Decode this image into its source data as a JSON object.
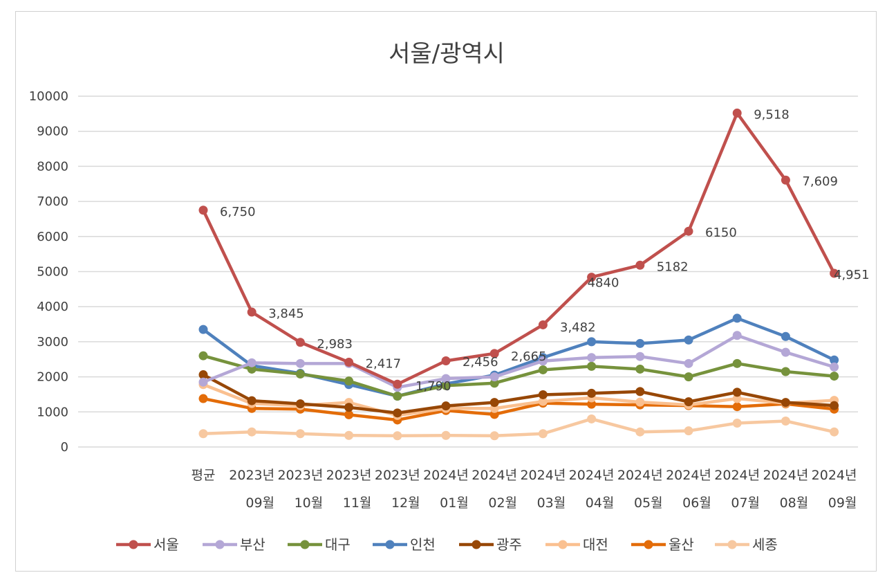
{
  "chart_data": {
    "type": "line",
    "title": "서울/광역시",
    "ylim": [
      0,
      10000
    ],
    "yticks": [
      0,
      1000,
      2000,
      3000,
      4000,
      5000,
      6000,
      7000,
      8000,
      9000,
      10000
    ],
    "grid": true,
    "legend_position": "bottom",
    "categories": [
      {
        "line1": "평균",
        "line2": ""
      },
      {
        "line1": "2023년",
        "line2": "09월"
      },
      {
        "line1": "2023년",
        "line2": "10월"
      },
      {
        "line1": "2023년",
        "line2": "11월"
      },
      {
        "line1": "2023년",
        "line2": "12월"
      },
      {
        "line1": "2024년",
        "line2": "01월"
      },
      {
        "line1": "2024년",
        "line2": "02월"
      },
      {
        "line1": "2024년",
        "line2": "03월"
      },
      {
        "line1": "2024년",
        "line2": "04월"
      },
      {
        "line1": "2024년",
        "line2": "05월"
      },
      {
        "line1": "2024년",
        "line2": "06월"
      },
      {
        "line1": "2024년",
        "line2": "07월"
      },
      {
        "line1": "2024년",
        "line2": "08월"
      },
      {
        "line1": "2024년",
        "line2": "09월"
      }
    ],
    "series": [
      {
        "name": "서울",
        "color": "#c0504d",
        "values": [
          6750,
          3845,
          2983,
          2417,
          1790,
          2456,
          2665,
          3482,
          4840,
          5182,
          6150,
          9518,
          7609,
          4951
        ],
        "labels": [
          "6,750",
          "3,845",
          "2,983",
          "2,417",
          "1,790",
          "2,456",
          "2,665",
          "3,482",
          "4840",
          "5182",
          "6150",
          "9,518",
          "7,609",
          "4,951"
        ]
      },
      {
        "name": "부산",
        "color": "#b4a7d6",
        "values": [
          1850,
          2400,
          2380,
          2380,
          1700,
          1950,
          2000,
          2450,
          2550,
          2580,
          2380,
          3180,
          2700,
          2280
        ]
      },
      {
        "name": "대구",
        "color": "#76923c",
        "values": [
          2600,
          2220,
          2080,
          1880,
          1450,
          1750,
          1820,
          2200,
          2300,
          2220,
          2000,
          2380,
          2150,
          2020
        ]
      },
      {
        "name": "인천",
        "color": "#4f81bd",
        "values": [
          3350,
          2320,
          2100,
          1780,
          1450,
          1800,
          2050,
          2550,
          3000,
          2950,
          3050,
          3670,
          3150,
          2480
        ]
      },
      {
        "name": "광주",
        "color": "#974706",
        "values": [
          2060,
          1320,
          1230,
          1130,
          970,
          1170,
          1270,
          1490,
          1530,
          1580,
          1290,
          1560,
          1270,
          1180
        ]
      },
      {
        "name": "대전",
        "color": "#fac090",
        "values": [
          1780,
          1240,
          1180,
          1270,
          900,
          1100,
          1100,
          1300,
          1400,
          1280,
          1200,
          1380,
          1250,
          1330
        ]
      },
      {
        "name": "울산",
        "color": "#e36c09",
        "values": [
          1380,
          1100,
          1080,
          920,
          770,
          1040,
          930,
          1250,
          1220,
          1200,
          1180,
          1150,
          1230,
          1080
        ]
      },
      {
        "name": "세종",
        "color": "#f7c8a0",
        "values": [
          380,
          430,
          380,
          330,
          320,
          330,
          320,
          380,
          800,
          430,
          460,
          680,
          740,
          430
        ]
      }
    ]
  }
}
